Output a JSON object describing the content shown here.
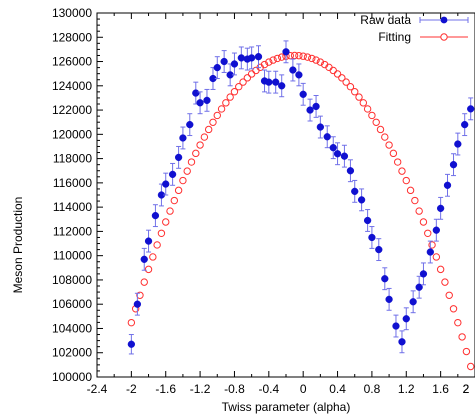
{
  "chart_data": {
    "type": "scatter",
    "title": "",
    "xlabel": "Twiss parameter (alpha)",
    "ylabel": "Meson Production",
    "xlim": [
      -2.4,
      2.0
    ],
    "ylim": [
      100000,
      130000
    ],
    "x_ticks": [
      "-2.4",
      "-2",
      "-1.6",
      "-1.2",
      "-0.8",
      "-0.4",
      "0",
      "0.4",
      "0.8",
      "1.2",
      "1.6",
      "2",
      "2"
    ],
    "y_ticks": [
      "100000",
      "102000",
      "104000",
      "106000",
      "108000",
      "110000",
      "112000",
      "114000",
      "116000",
      "118000",
      "120000",
      "122000",
      "124000",
      "126000",
      "128000",
      "130000"
    ],
    "grid": false,
    "legend_position": "top-right",
    "colors": {
      "raw": "#1010d0",
      "errorbar": "#7070e8",
      "fit": "#ff3030"
    },
    "series": [
      {
        "name": "Raw data",
        "style": "filled-circle-with-errorbars",
        "x": [
          -2.0,
          -1.93,
          -1.85,
          -1.8,
          -1.72,
          -1.65,
          -1.6,
          -1.52,
          -1.45,
          -1.4,
          -1.32,
          -1.25,
          -1.2,
          -1.12,
          -1.05,
          -1.0,
          -0.92,
          -0.85,
          -0.8,
          -0.72,
          -0.65,
          -0.6,
          -0.52,
          -0.45,
          -0.4,
          -0.32,
          -0.25,
          -0.2,
          -0.12,
          -0.05,
          0.0,
          0.08,
          0.15,
          0.2,
          0.28,
          0.35,
          0.4,
          0.48,
          0.55,
          0.6,
          0.68,
          0.75,
          0.8,
          0.88,
          0.95,
          1.0,
          1.08,
          1.15,
          1.2,
          1.28,
          1.35,
          1.4,
          1.48,
          1.55,
          1.6,
          1.68,
          1.75,
          1.8,
          1.88,
          1.95
        ],
        "y": [
          102700,
          106000,
          109700,
          111200,
          113300,
          115000,
          115900,
          116700,
          118100,
          119700,
          120800,
          123400,
          122600,
          122800,
          124600,
          125500,
          126000,
          124900,
          125800,
          126300,
          126200,
          126300,
          126400,
          124400,
          124300,
          124300,
          124000,
          126800,
          125300,
          124900,
          123300,
          122000,
          122300,
          120600,
          119800,
          118900,
          118400,
          118200,
          117000,
          115300,
          114600,
          112900,
          111500,
          110500,
          108100,
          106400,
          104200,
          102900,
          104800,
          106200,
          107400,
          108500,
          110300,
          112100,
          113900,
          115800,
          117500,
          119200,
          120800,
          122100
        ],
        "error": [
          800,
          900,
          900,
          900,
          900,
          900,
          900,
          900,
          900,
          900,
          900,
          900,
          900,
          900,
          900,
          900,
          900,
          900,
          900,
          900,
          900,
          900,
          900,
          900,
          900,
          900,
          900,
          900,
          900,
          900,
          900,
          900,
          900,
          900,
          900,
          900,
          900,
          900,
          900,
          900,
          900,
          900,
          900,
          900,
          900,
          900,
          900,
          900,
          900,
          900,
          900,
          900,
          900,
          900,
          900,
          900,
          900,
          900,
          900,
          900
        ]
      },
      {
        "name": "Fitting",
        "style": "open-circle",
        "model": "parabola",
        "vertex_x": -0.1,
        "vertex_y": 126500,
        "curvature": 6100,
        "x_start": -2.0,
        "x_end": 1.95,
        "step": 0.05
      }
    ]
  }
}
